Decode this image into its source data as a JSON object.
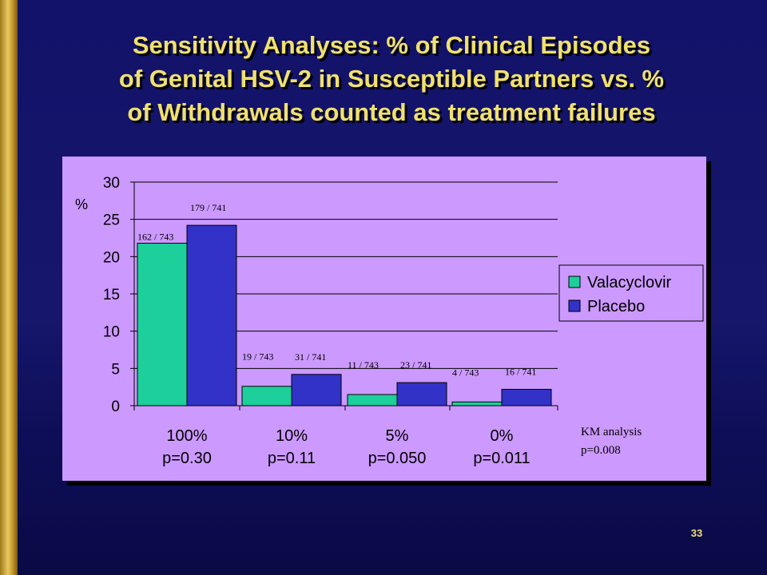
{
  "title": {
    "line1": "Sensitivity Analyses: % of Clinical Episodes",
    "line2": "of Genital HSV-2 in Susceptible Partners vs. %",
    "line3": "of Withdrawals counted as treatment failures"
  },
  "slide_number": "33",
  "annotation": {
    "line1": "KM analysis",
    "line2": "p=0.008"
  },
  "chart_data": {
    "type": "bar",
    "title": "",
    "ylabel": "%",
    "xlabel": "",
    "ylim": [
      0,
      30
    ],
    "yticks": [
      "0",
      "5",
      "10",
      "15",
      "20",
      "25",
      "30"
    ],
    "grid": true,
    "legend_position": "right",
    "categories": [
      {
        "line1": "100%",
        "line2": "p=0.30"
      },
      {
        "line1": "10%",
        "line2": "p=0.11"
      },
      {
        "line1": "5%",
        "line2": "p=0.050"
      },
      {
        "line1": "0%",
        "line2": "p=0.011"
      }
    ],
    "series": [
      {
        "name": "Valacyclovir",
        "color": "#1dcf9a",
        "values": [
          21.8,
          2.6,
          1.5,
          0.5
        ],
        "labels": [
          "162 / 743",
          "19 / 743",
          "11 / 743",
          "4 / 743"
        ]
      },
      {
        "name": "Placebo",
        "color": "#3232c8",
        "values": [
          24.2,
          4.2,
          3.1,
          2.2
        ],
        "labels": [
          "179 / 741",
          "31 / 741",
          "23 / 741",
          "16 / 741"
        ]
      }
    ]
  }
}
